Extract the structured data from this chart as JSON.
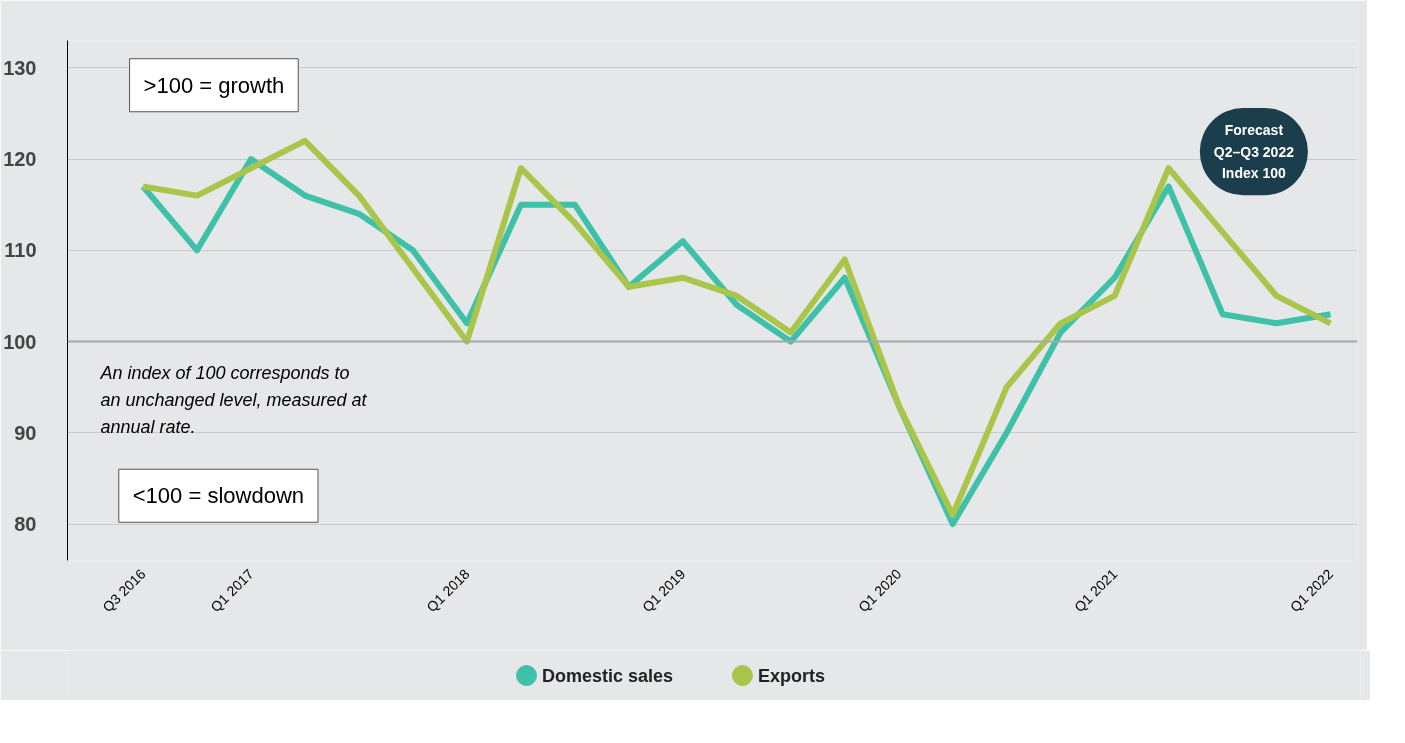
{
  "chart_data": {
    "type": "line",
    "categories": [
      "Q3 2016",
      null,
      "Q1 2017",
      null,
      null,
      null,
      "Q1 2018",
      null,
      null,
      null,
      "Q1 2019",
      null,
      null,
      null,
      "Q1 2020",
      null,
      null,
      null,
      "Q1 2021",
      null,
      null,
      null,
      "Q1 2022"
    ],
    "series": [
      {
        "name": "Domestic sales",
        "color": "#3fc1a9",
        "values": [
          117,
          110,
          120,
          116,
          114,
          110,
          102,
          115,
          115,
          106,
          111,
          104,
          100,
          107,
          93,
          80,
          90,
          101,
          107,
          117,
          103,
          102,
          103
        ]
      },
      {
        "name": "Exports",
        "color": "#a9c54a",
        "values": [
          117,
          116,
          119,
          122,
          116,
          108,
          100,
          119,
          113,
          106,
          107,
          105,
          101,
          109,
          93,
          81,
          95,
          102,
          105,
          119,
          112,
          105,
          102
        ]
      }
    ],
    "ylim": [
      76,
      133
    ],
    "yticks": [
      80,
      90,
      100,
      110,
      120,
      130
    ],
    "grid": "y",
    "legend": "bottom",
    "marker": "none",
    "line_style": "solid",
    "ref_lines": [
      {
        "axis": "y",
        "value": 100,
        "label": null,
        "color": "#a6a7a9"
      }
    ],
    "annotations": [
      ">100 = growth",
      "<100 = slowdown",
      "An index of 100 corresponds to\nan unchanged level, measured at\nannual rate.",
      "Forecast\nQ2–Q3 2022\nIndex 100"
    ]
  }
}
